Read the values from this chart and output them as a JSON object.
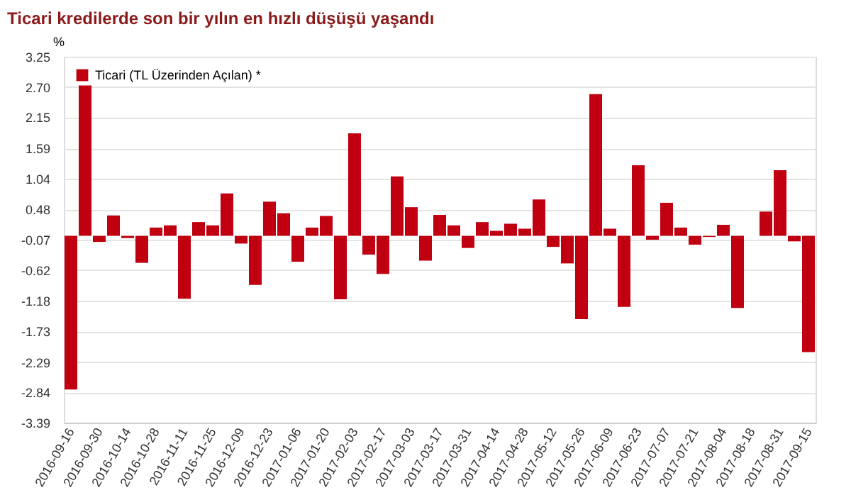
{
  "chart_data": {
    "type": "bar",
    "title": "Ticari kredilerde son bir yılın en hızlı düşüşü yaşandı",
    "ylabel": "%",
    "categories": [
      "2016-09-16",
      null,
      "2016-09-30",
      null,
      "2016-10-14",
      null,
      "2016-10-28",
      null,
      "2016-11-11",
      null,
      "2016-11-25",
      null,
      "2016-12-09",
      null,
      "2016-12-23",
      null,
      "2017-01-06",
      null,
      "2017-01-20",
      null,
      "2017-02-03",
      null,
      "2017-02-17",
      null,
      "2017-03-03",
      null,
      "2017-03-17",
      null,
      "2017-03-31",
      null,
      "2017-04-14",
      null,
      "2017-04-28",
      null,
      "2017-05-12",
      null,
      "2017-05-26",
      null,
      "2017-06-09",
      null,
      "2017-06-23",
      null,
      "2017-07-07",
      null,
      "2017-07-21",
      null,
      "2017-08-04",
      null,
      "2017-08-18",
      null,
      "2017-08-31",
      null,
      "2017-09-15"
    ],
    "series": [
      {
        "name": "Ticari (TL Üzerinden Açılan) *",
        "color": "#c00010",
        "values": [
          -2.79,
          2.73,
          -0.11,
          0.37,
          -0.04,
          -0.49,
          0.15,
          0.19,
          -1.14,
          0.25,
          0.19,
          0.77,
          -0.14,
          -0.89,
          0.62,
          0.41,
          -0.47,
          0.15,
          0.36,
          -1.15,
          1.86,
          -0.34,
          -0.69,
          1.08,
          0.52,
          -0.45,
          0.38,
          0.19,
          -0.22,
          0.25,
          0.09,
          0.22,
          0.13,
          0.66,
          -0.2,
          -0.5,
          -1.51,
          2.57,
          0.13,
          -1.29,
          1.28,
          -0.07,
          0.6,
          0.15,
          -0.16,
          -0.02,
          0.2,
          -1.31,
          null,
          0.44,
          1.19,
          -0.1,
          -2.11
        ]
      }
    ],
    "ylim": [
      -3.39,
      3.25
    ],
    "yticks": [
      {
        "value": -3.39,
        "label": "-3.39"
      },
      {
        "value": -2.84,
        "label": "-2.84"
      },
      {
        "value": -2.29,
        "label": "-2.29"
      },
      {
        "value": -1.73,
        "label": "-1.73"
      },
      {
        "value": -1.18,
        "label": "-1.18"
      },
      {
        "value": -0.62,
        "label": "-0.62"
      },
      {
        "value": -0.07,
        "label": "-0.07"
      },
      {
        "value": 0.48,
        "label": "0.48"
      },
      {
        "value": 1.04,
        "label": "1.04"
      },
      {
        "value": 1.59,
        "label": "1.59"
      },
      {
        "value": 2.15,
        "label": "2.15"
      },
      {
        "value": 2.7,
        "label": "2.70"
      },
      {
        "value": 3.25,
        "label": "3.25"
      }
    ],
    "grid": "y",
    "legend": "top left"
  }
}
